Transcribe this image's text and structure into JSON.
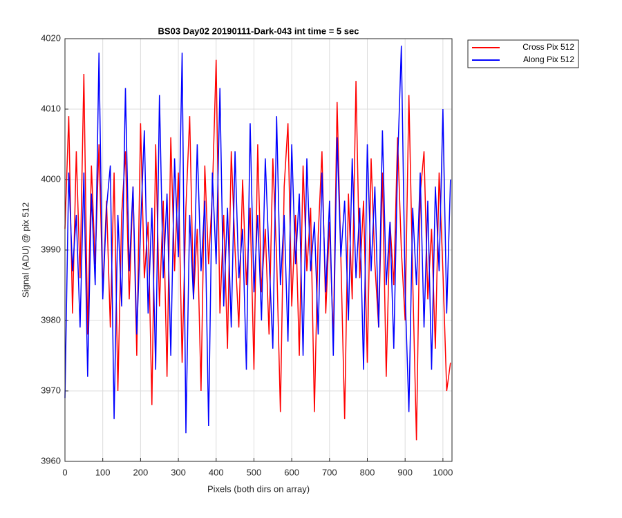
{
  "chart_data": {
    "type": "line",
    "title": "BS03 Day02 20190111-Dark-043 int time = 5 sec",
    "xlabel": "Pixels (both dirs on array)",
    "ylabel": "Signal (ADU) @ pix 512",
    "x": [
      0,
      10,
      20,
      30,
      40,
      50,
      60,
      70,
      80,
      90,
      100,
      110,
      120,
      130,
      140,
      150,
      160,
      170,
      180,
      190,
      200,
      210,
      220,
      230,
      240,
      250,
      260,
      270,
      280,
      290,
      300,
      310,
      320,
      330,
      340,
      350,
      360,
      370,
      380,
      390,
      400,
      410,
      420,
      430,
      440,
      450,
      460,
      470,
      480,
      490,
      500,
      510,
      520,
      530,
      540,
      550,
      560,
      570,
      580,
      590,
      600,
      610,
      620,
      630,
      640,
      650,
      660,
      670,
      680,
      690,
      700,
      710,
      720,
      730,
      740,
      750,
      760,
      770,
      780,
      790,
      800,
      810,
      820,
      830,
      840,
      850,
      860,
      870,
      880,
      890,
      900,
      910,
      920,
      930,
      940,
      950,
      960,
      970,
      980,
      990,
      1000,
      1010,
      1020
    ],
    "series": [
      {
        "name": "Cross Pix 512",
        "color": "#ff0000",
        "values": [
          3993,
          4009,
          3981,
          4004,
          3986,
          4015,
          3978,
          4002,
          3988,
          4005,
          3984,
          3997,
          3979,
          4001,
          3970,
          3995,
          4004,
          3983,
          3999,
          3975,
          4008,
          3986,
          3994,
          3968,
          4005,
          3982,
          3997,
          3972,
          4006,
          3987,
          4001,
          3974,
          3996,
          4009,
          3983,
          3993,
          3970,
          4002,
          3988,
          3998,
          4017,
          3981,
          3995,
          3976,
          4004,
          3990,
          3979,
          4000,
          3985,
          3996,
          3973,
          4005,
          3984,
          3993,
          3978,
          4003,
          3989,
          3967,
          3999,
          4008,
          3982,
          3995,
          3975,
          4002,
          3987,
          3996,
          3967,
          3992,
          4004,
          3981,
          3994,
          3977,
          4011,
          3989,
          3966,
          3998,
          3983,
          4014,
          3986,
          3997,
          3974,
          4003,
          3988,
          3979,
          4001,
          3972,
          3994,
          3985,
          4006,
          3990,
          3980,
          4012,
          3986,
          3963,
          3998,
          4004,
          3983,
          3993,
          3976,
          4001,
          3987,
          3970,
          3974
        ]
      },
      {
        "name": "Along Pix 512",
        "color": "#0000ff",
        "values": [
          3969,
          4001,
          3987,
          3995,
          3979,
          4001,
          3972,
          3998,
          3985,
          4018,
          3983,
          3996,
          4002,
          3966,
          3995,
          3982,
          4013,
          3987,
          3999,
          3978,
          3993,
          4007,
          3981,
          3996,
          3973,
          4012,
          3986,
          3998,
          3975,
          4003,
          3989,
          4018,
          3964,
          3995,
          3983,
          4005,
          3987,
          3997,
          3965,
          4001,
          3988,
          4013,
          3982,
          3996,
          3979,
          4004,
          3986,
          3993,
          3973,
          4008,
          3984,
          3995,
          3980,
          4003,
          3989,
          3976,
          4009,
          3985,
          3995,
          3977,
          4005,
          3988,
          3998,
          3975,
          4003,
          3987,
          3994,
          3978,
          4001,
          3984,
          3997,
          3975,
          4006,
          3989,
          3997,
          3980,
          4003,
          3986,
          3996,
          3973,
          4005,
          3987,
          3999,
          3979,
          4007,
          3985,
          3994,
          3976,
          4002,
          4019,
          3984,
          3967,
          3996,
          3985,
          4001,
          3979,
          3997,
          3973,
          3999,
          3987,
          4010,
          3981,
          4000
        ]
      }
    ],
    "xlim": [
      0,
      1024
    ],
    "xticks": [
      0,
      100,
      200,
      300,
      400,
      500,
      600,
      700,
      800,
      900,
      1000
    ],
    "ylim": [
      3960,
      4020
    ],
    "yticks": [
      3960,
      3970,
      3980,
      3990,
      4000,
      4010,
      4020
    ],
    "grid": true,
    "legend": "outside-top-right"
  }
}
